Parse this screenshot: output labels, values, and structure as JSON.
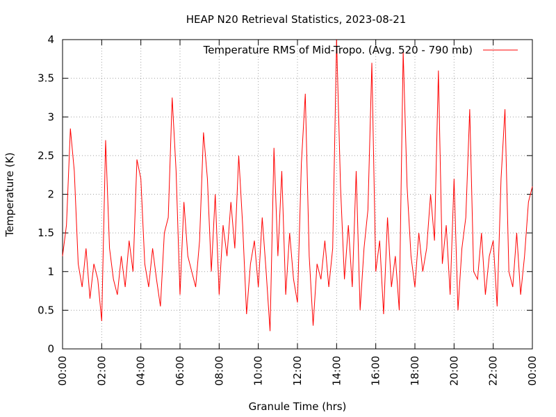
{
  "chart_data": {
    "type": "line",
    "title": "HEAP N20 Retrieval Statistics, 2023-08-21",
    "xlabel": "Granule Time (hrs)",
    "ylabel": "Temperature (K)",
    "xlim": [
      0,
      24
    ],
    "ylim": [
      0,
      4
    ],
    "xticks": [
      {
        "value": 0,
        "label": "00:00"
      },
      {
        "value": 2,
        "label": "02:00"
      },
      {
        "value": 4,
        "label": "04:00"
      },
      {
        "value": 6,
        "label": "06:00"
      },
      {
        "value": 8,
        "label": "08:00"
      },
      {
        "value": 10,
        "label": "10:00"
      },
      {
        "value": 12,
        "label": "12:00"
      },
      {
        "value": 14,
        "label": "14:00"
      },
      {
        "value": 16,
        "label": "16:00"
      },
      {
        "value": 18,
        "label": "18:00"
      },
      {
        "value": 20,
        "label": "20:00"
      },
      {
        "value": 22,
        "label": "22:00"
      },
      {
        "value": 24,
        "label": "00:00"
      }
    ],
    "yticks": [
      0,
      0.5,
      1,
      1.5,
      2,
      2.5,
      3,
      3.5,
      4
    ],
    "grid": true,
    "legend": "upper right",
    "x": [
      0,
      0.2,
      0.4,
      0.6,
      0.8,
      1,
      1.2,
      1.4,
      1.6,
      1.8,
      2,
      2.2,
      2.4,
      2.6,
      2.8,
      3,
      3.2,
      3.4,
      3.6,
      3.8,
      4,
      4.2,
      4.4,
      4.6,
      4.8,
      5,
      5.2,
      5.4,
      5.6,
      5.8,
      6,
      6.2,
      6.4,
      6.6,
      6.8,
      7,
      7.2,
      7.4,
      7.6,
      7.8,
      8,
      8.2,
      8.4,
      8.6,
      8.8,
      9,
      9.2,
      9.4,
      9.6,
      9.8,
      10,
      10.2,
      10.4,
      10.6,
      10.8,
      11,
      11.2,
      11.4,
      11.6,
      11.8,
      12,
      12.2,
      12.4,
      12.6,
      12.8,
      13,
      13.2,
      13.4,
      13.6,
      13.8,
      14,
      14.2,
      14.4,
      14.6,
      14.8,
      15,
      15.2,
      15.4,
      15.6,
      15.8,
      16,
      16.2,
      16.4,
      16.6,
      16.8,
      17,
      17.2,
      17.4,
      17.6,
      17.8,
      18,
      18.2,
      18.4,
      18.6,
      18.8,
      19,
      19.2,
      19.4,
      19.6,
      19.8,
      20,
      20.2,
      20.4,
      20.6,
      20.8,
      21,
      21.2,
      21.4,
      21.6,
      21.8,
      22,
      22.2,
      22.4,
      22.6,
      22.8,
      23,
      23.2,
      23.4,
      23.6,
      23.8,
      24
    ],
    "series": [
      {
        "name": "Temperature RMS of Mid-Tropo. (Avg. 520 - 790 mb)",
        "color": "#ff0000",
        "values": [
          1.2,
          1.6,
          2.85,
          2.3,
          1.1,
          0.8,
          1.3,
          0.65,
          1.1,
          0.9,
          0.36,
          2.7,
          1.3,
          0.9,
          0.7,
          1.2,
          0.8,
          1.4,
          1.0,
          2.45,
          2.2,
          1.1,
          0.8,
          1.3,
          0.9,
          0.55,
          1.5,
          1.7,
          3.25,
          2.3,
          0.7,
          1.9,
          1.2,
          1.0,
          0.8,
          1.4,
          2.8,
          2.2,
          1.0,
          2.0,
          0.7,
          1.6,
          1.2,
          1.9,
          1.3,
          2.5,
          1.6,
          0.45,
          1.1,
          1.4,
          0.8,
          1.7,
          1.0,
          0.23,
          2.6,
          1.2,
          2.3,
          0.7,
          1.5,
          0.9,
          0.6,
          2.4,
          3.3,
          1.2,
          0.3,
          1.1,
          0.9,
          1.4,
          0.8,
          1.3,
          4.0,
          2.1,
          0.9,
          1.6,
          0.8,
          2.3,
          0.5,
          1.3,
          1.8,
          3.7,
          1.0,
          1.4,
          0.45,
          1.7,
          0.8,
          1.2,
          0.5,
          3.85,
          2.1,
          1.2,
          0.8,
          1.5,
          1.0,
          1.3,
          2.0,
          1.4,
          3.6,
          1.1,
          1.6,
          0.7,
          2.2,
          0.5,
          1.3,
          1.7,
          3.1,
          1.0,
          0.9,
          1.5,
          0.7,
          1.2,
          1.4,
          0.55,
          2.2,
          3.1,
          1.0,
          0.8,
          1.5,
          0.7,
          1.2,
          1.9,
          2.1
        ]
      }
    ]
  }
}
